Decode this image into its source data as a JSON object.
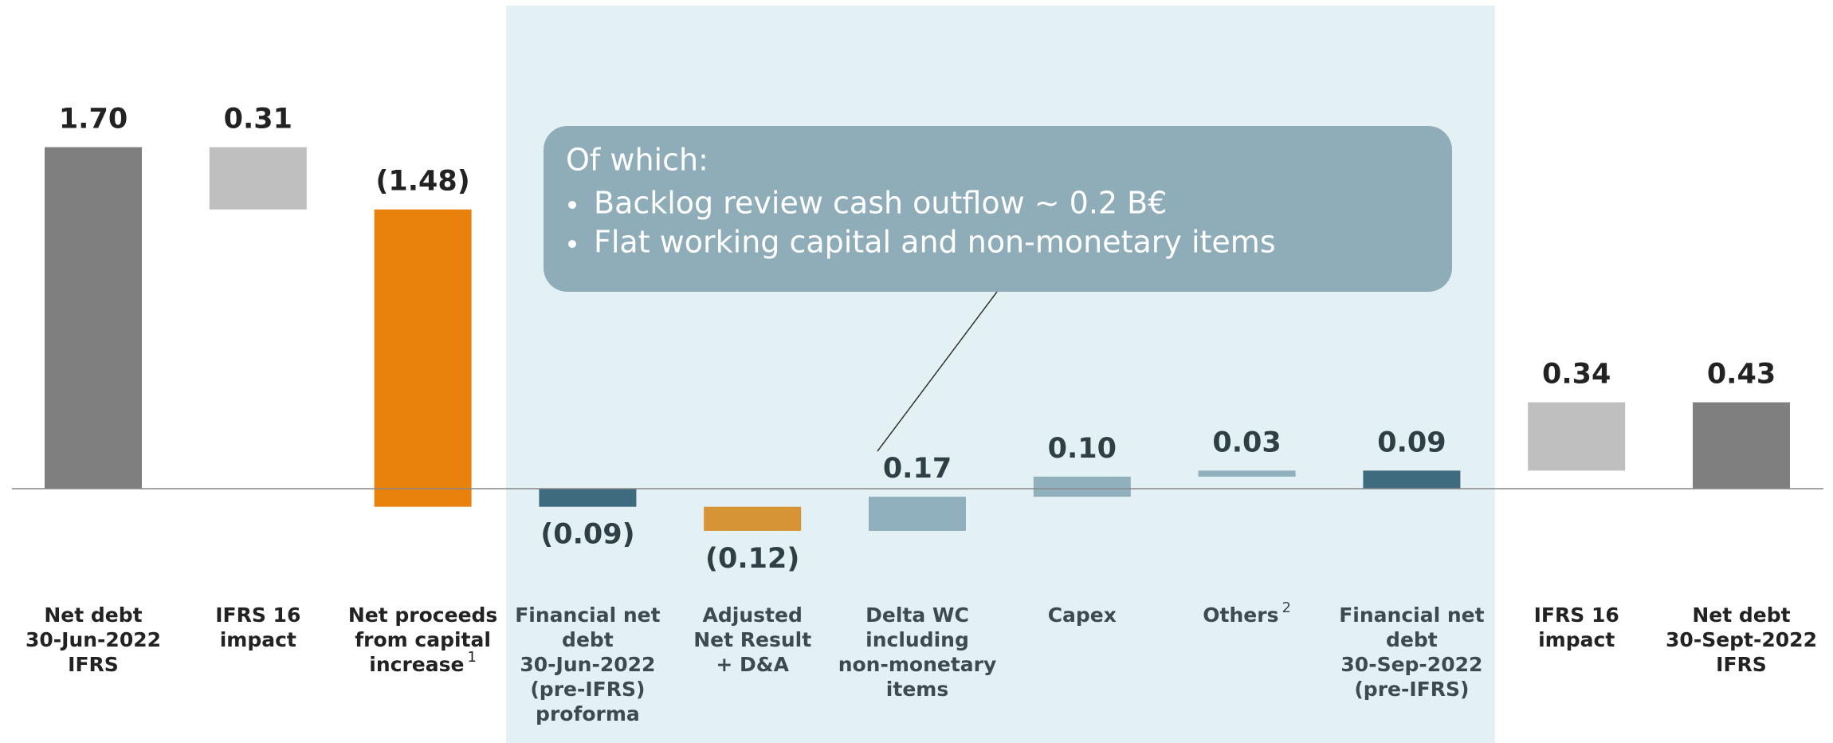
{
  "chart_data": {
    "type": "waterfall",
    "categories": [
      [
        "Net debt",
        "30-Jun-2022",
        "IFRS"
      ],
      [
        "IFRS 16",
        "impact"
      ],
      [
        "Net proceeds",
        "from capital",
        "increase"
      ],
      [
        "Financial net",
        "debt",
        "30-Jun-2022",
        "(pre-IFRS)",
        "proforma"
      ],
      [
        "Adjusted",
        "Net Result",
        "+ D&A"
      ],
      [
        "Delta WC",
        "including",
        "non-monetary",
        "items"
      ],
      [
        "Capex"
      ],
      [
        "Others"
      ],
      [
        "Financial net",
        "debt",
        "30-Sep-2022",
        "(pre-IFRS)"
      ],
      [
        "IFRS 16",
        "impact"
      ],
      [
        "Net debt",
        "30-Sept-2022",
        "IFRS"
      ]
    ],
    "values": [
      1.7,
      0.31,
      -1.48,
      -0.09,
      -0.12,
      0.17,
      0.1,
      0.03,
      0.09,
      0.34,
      0.43
    ],
    "value_labels": [
      "1.70",
      "0.31",
      "(1.48)",
      "(0.09)",
      "(0.12)",
      "0.17",
      "0.10",
      "0.03",
      "0.09",
      "0.34",
      "0.43"
    ],
    "measure": [
      "total",
      "subtract",
      "relative",
      "total",
      "relative",
      "relative",
      "relative",
      "relative",
      "total",
      "relative",
      "total"
    ],
    "colors": [
      "#7f7f7f",
      "#bfbfbf",
      "#e8820c",
      "#3e6b7e",
      "#d79434",
      "#8fb0bc",
      "#8fb0bc",
      "#8fb0bc",
      "#3e6b7e",
      "#bfbfbf",
      "#7f7f7f"
    ],
    "footnote_marks": [
      {
        "category": 2,
        "mark": "1"
      },
      {
        "category": 7,
        "mark": "2"
      }
    ],
    "highlight_categories": [
      3,
      8
    ],
    "callout": {
      "heading": "Of which:",
      "bullets": [
        "Backlog review cash outflow ~ 0.2 B€",
        "Flat working capital and non-monetary items"
      ],
      "points_to": 5
    }
  }
}
